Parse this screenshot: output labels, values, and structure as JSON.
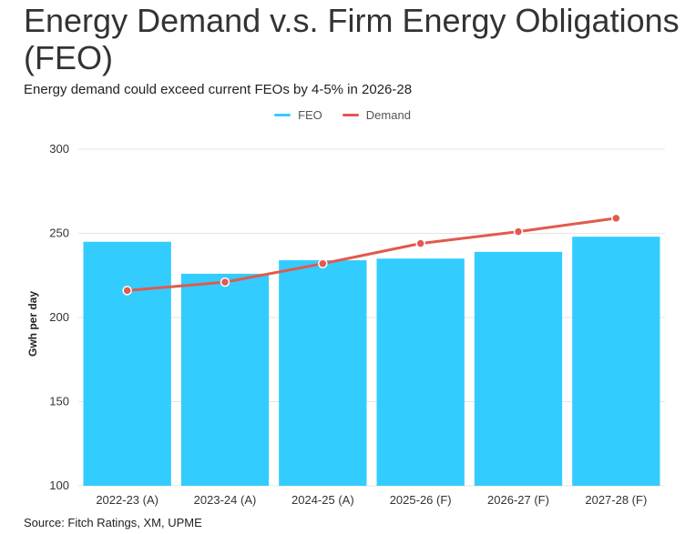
{
  "header": {
    "title": "Energy Demand v.s. Firm Energy Obligations (FEO)",
    "subtitle": "Energy demand could exceed current FEOs by 4-5% in 2026-28"
  },
  "legend": [
    {
      "name": "FEO",
      "color": "#33CCFF"
    },
    {
      "name": "Demand",
      "color": "#E05A4F"
    }
  ],
  "footer": {
    "source": "Source: Fitch Ratings, XM, UPME"
  },
  "chart_data": {
    "type": "bar",
    "title": "Energy Demand v.s. Firm Energy Obligations (FEO)",
    "subtitle": "Energy demand could exceed current FEOs by 4-5% in 2026-28",
    "xlabel": "",
    "ylabel": "Gwh per day",
    "ylim": [
      100,
      300
    ],
    "yticks": [
      100,
      150,
      200,
      250,
      300
    ],
    "categories": [
      "2022-23 (A)",
      "2023-24 (A)",
      "2024-25 (A)",
      "2025-26 (F)",
      "2026-27 (F)",
      "2027-28 (F)"
    ],
    "series": [
      {
        "name": "FEO",
        "type": "bar",
        "color": "#33CCFF",
        "values": [
          245,
          226,
          234,
          235,
          239,
          248
        ]
      },
      {
        "name": "Demand",
        "type": "line",
        "color": "#E05A4F",
        "values": [
          216,
          221,
          232,
          244,
          251,
          259
        ]
      }
    ],
    "grid": true,
    "legend_position": "top-center"
  }
}
